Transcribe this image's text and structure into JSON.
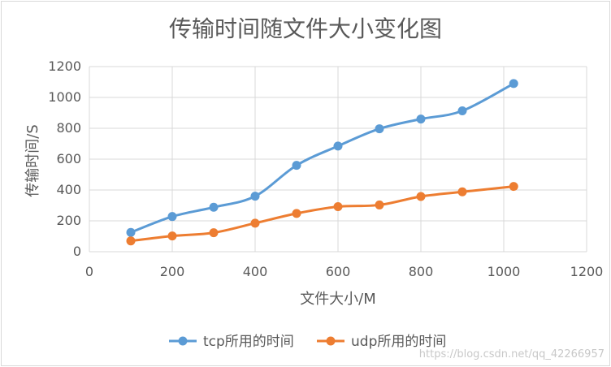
{
  "chart_data": {
    "type": "line",
    "title": "传输时间随文件大小变化图",
    "xlabel": "文件大小/M",
    "ylabel": "传输时间/S",
    "xlim": [
      0,
      1200
    ],
    "ylim": [
      0,
      1200
    ],
    "xticks": [
      0,
      200,
      400,
      600,
      800,
      1000,
      1200
    ],
    "yticks": [
      0,
      200,
      400,
      600,
      800,
      1000,
      1200
    ],
    "grid": true,
    "legend_position": "bottom",
    "smooth": true,
    "series": [
      {
        "name": "tcp所用的时间",
        "color": "#5b9bd5",
        "points": [
          [
            100,
            125
          ],
          [
            200,
            228
          ],
          [
            300,
            288
          ],
          [
            400,
            360
          ],
          [
            500,
            560
          ],
          [
            600,
            685
          ],
          [
            700,
            797
          ],
          [
            800,
            860
          ],
          [
            900,
            913
          ],
          [
            1024,
            1090
          ]
        ]
      },
      {
        "name": "udp所用的时间",
        "color": "#ed7d31",
        "points": [
          [
            100,
            70
          ],
          [
            200,
            102
          ],
          [
            300,
            123
          ],
          [
            400,
            185
          ],
          [
            500,
            248
          ],
          [
            600,
            292
          ],
          [
            700,
            303
          ],
          [
            800,
            358
          ],
          [
            900,
            388
          ],
          [
            1024,
            423
          ]
        ]
      }
    ]
  },
  "watermark": "https://blog.csdn.net/qq_42266957"
}
